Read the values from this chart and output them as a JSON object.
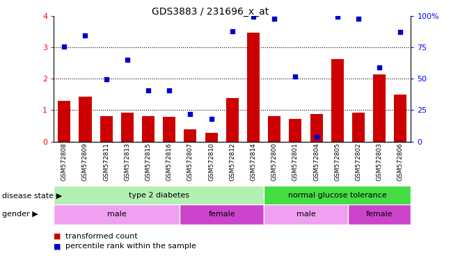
{
  "title": "GDS3883 / 231696_x_at",
  "samples": [
    "GSM572808",
    "GSM572809",
    "GSM572811",
    "GSM572813",
    "GSM572815",
    "GSM572816",
    "GSM572807",
    "GSM572810",
    "GSM572812",
    "GSM572814",
    "GSM572800",
    "GSM572801",
    "GSM572804",
    "GSM572805",
    "GSM572802",
    "GSM572803",
    "GSM572806"
  ],
  "transformed_count": [
    1.3,
    1.42,
    0.82,
    0.93,
    0.82,
    0.78,
    0.38,
    0.28,
    1.38,
    3.48,
    0.82,
    0.72,
    0.88,
    2.62,
    0.93,
    2.15,
    1.5
  ],
  "percentile_rank": [
    3.02,
    3.38,
    1.98,
    2.6,
    1.62,
    1.62,
    0.88,
    0.72,
    3.52,
    3.98,
    3.92,
    2.08,
    0.14,
    3.98,
    3.92,
    2.35,
    3.5
  ],
  "percentile_rank_indices": [
    0,
    1,
    2,
    3,
    4,
    5,
    6,
    7,
    8,
    9,
    10,
    11,
    12,
    13,
    14,
    15,
    16
  ],
  "ylim_left": [
    0,
    4
  ],
  "bar_color": "#cc0000",
  "dot_color": "#0000cc",
  "disease_state_groups": [
    {
      "label": "type 2 diabetes",
      "start": 0,
      "end": 9,
      "color": "#b3f0b3"
    },
    {
      "label": "normal glucose tolerance",
      "start": 10,
      "end": 16,
      "color": "#44dd44"
    }
  ],
  "gender_groups": [
    {
      "label": "male",
      "start": 0,
      "end": 5,
      "color": "#f0a0f0"
    },
    {
      "label": "female",
      "start": 6,
      "end": 9,
      "color": "#cc44cc"
    },
    {
      "label": "male",
      "start": 10,
      "end": 13,
      "color": "#f0a0f0"
    },
    {
      "label": "female",
      "start": 14,
      "end": 16,
      "color": "#cc44cc"
    }
  ],
  "legend_transformed": "transformed count",
  "legend_percentile": "percentile rank within the sample",
  "disease_state_label": "disease state",
  "gender_label": "gender"
}
